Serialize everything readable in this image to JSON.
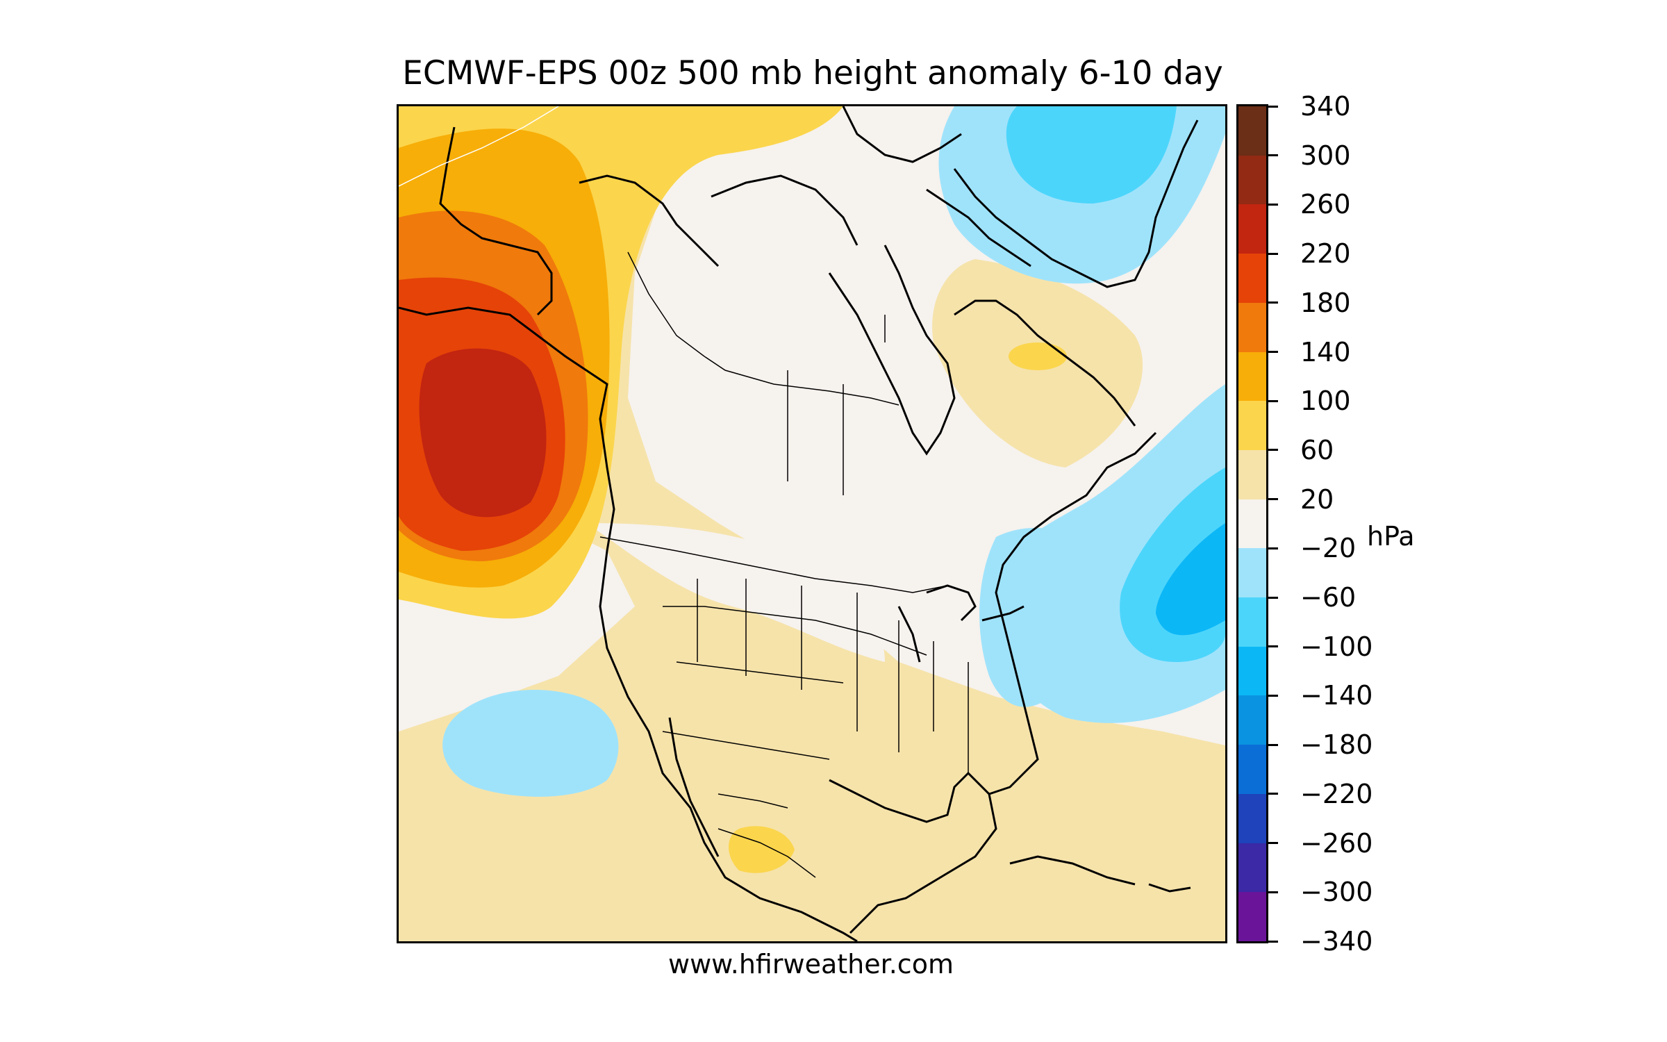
{
  "title": "ECMWF-EPS 00z 500 mb height anomaly 6-10 day",
  "footer": "www.hfirweather.com",
  "colorbar": {
    "units": "hPa",
    "tick_labels": [
      "340",
      "300",
      "260",
      "220",
      "180",
      "140",
      "100",
      "60",
      "20",
      "−20",
      "−60",
      "−100",
      "−140",
      "−180",
      "−220",
      "−260",
      "−300",
      "−340"
    ],
    "colors": [
      "#6b2e16",
      "#922a14",
      "#c22510",
      "#e64308",
      "#f07a0c",
      "#f7ae08",
      "#fbd54c",
      "#f6e3aa",
      "#f6f2ee",
      "#9fe3fb",
      "#4cd5fb",
      "#0cb7f6",
      "#0a93e0",
      "#0a6ed6",
      "#1f43bb",
      "#3b29a6",
      "#6a149a"
    ]
  },
  "anomaly_colors": {
    "neutral": "#f6f2ee",
    "pos_20_60": "#f6e3aa",
    "pos_60_100": "#fbd54c",
    "pos_100_140": "#f7ae08",
    "pos_140_180": "#f07a0c",
    "pos_180_220": "#e64308",
    "pos_220_260": "#c22510",
    "neg_20_60": "#9fe3fb",
    "neg_60_100": "#4cd5fb",
    "neg_100_140": "#0cb7f6"
  }
}
